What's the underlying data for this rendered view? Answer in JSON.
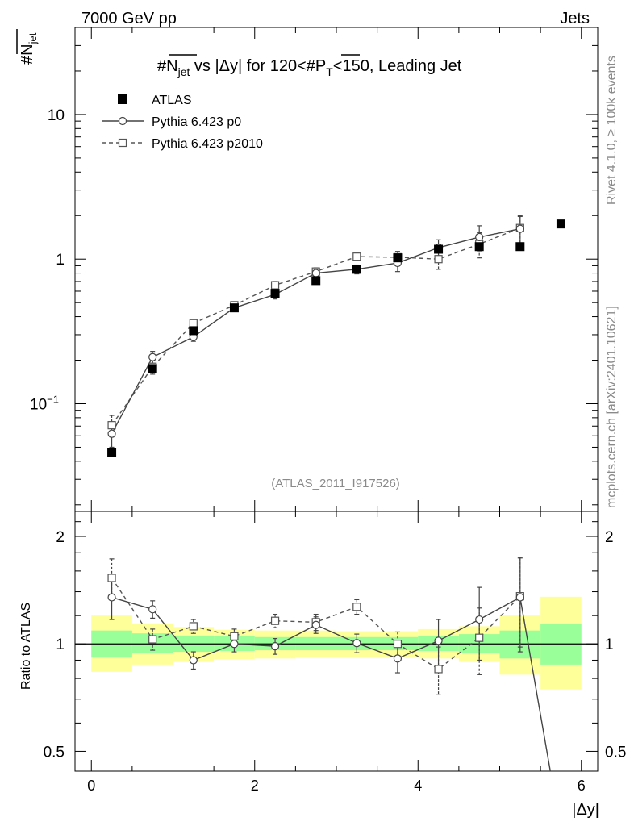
{
  "header": {
    "left": "7000 GeV pp",
    "right": "Jets"
  },
  "side": {
    "rivet": "Rivet 4.1.0, ≥ 100k events",
    "mcplots": "mcplots.cern.ch [arXiv:2401.10621]"
  },
  "chart_data": [
    {
      "type": "scatter",
      "title": "#N_jet vs |Δy| for 120<#P_T<150, Leading Jet",
      "ylabel": "#N_jet",
      "yscale": "log",
      "ylim": [
        0.018,
        40
      ],
      "xlim": [
        -0.2,
        6.2
      ],
      "yticks": [
        {
          "value": 0.1,
          "label": "10",
          "sup": "−1"
        },
        {
          "value": 1,
          "label": "1"
        },
        {
          "value": 10,
          "label": "10"
        }
      ],
      "watermark": "(ATLAS_2011_I917526)",
      "legend": [
        {
          "name": "ATLAS",
          "marker": "filled-square"
        },
        {
          "name": "Pythia 6.423 p0",
          "marker": "open-circle",
          "line": "solid"
        },
        {
          "name": "Pythia 6.423 p2010",
          "marker": "open-square",
          "line": "dashed"
        }
      ],
      "series": [
        {
          "name": "ATLAS",
          "x": [
            0.25,
            0.75,
            1.25,
            1.75,
            2.25,
            2.75,
            3.25,
            3.75,
            4.25,
            4.75,
            5.25,
            5.75
          ],
          "y": [
            0.046,
            0.175,
            0.32,
            0.46,
            0.58,
            0.71,
            0.85,
            1.02,
            1.17,
            1.22,
            1.22,
            1.75
          ]
        },
        {
          "name": "Pythia 6.423 p0",
          "x": [
            0.25,
            0.75,
            1.25,
            1.75,
            2.25,
            2.75,
            3.25,
            3.75,
            4.25,
            4.75,
            5.25
          ],
          "y": [
            0.062,
            0.21,
            0.29,
            0.46,
            0.57,
            0.8,
            0.85,
            0.94,
            1.2,
            1.42,
            1.62
          ],
          "err": [
            0.012,
            0.02,
            0.02,
            0.02,
            0.04,
            0.05,
            0.06,
            0.12,
            0.16,
            0.28,
            0.35
          ]
        },
        {
          "name": "Pythia 6.423 p2010",
          "x": [
            0.25,
            0.75,
            1.25,
            1.75,
            2.25,
            2.75,
            3.25,
            3.75,
            4.25,
            4.75,
            5.25
          ],
          "y": [
            0.071,
            0.18,
            0.36,
            0.48,
            0.66,
            0.82,
            1.04,
            1.03,
            1.0,
            1.27,
            1.64
          ],
          "err": [
            0.012,
            0.02,
            0.02,
            0.02,
            0.04,
            0.05,
            0.06,
            0.1,
            0.15,
            0.25,
            0.35
          ]
        }
      ]
    },
    {
      "type": "line",
      "ylabel": "Ratio to ATLAS",
      "xlabel": "|Δy|",
      "yscale": "log",
      "ylim": [
        0.44,
        2.35
      ],
      "xlim": [
        -0.2,
        6.2
      ],
      "xticks": [
        0,
        2,
        4,
        6
      ],
      "yticks": [
        0.5,
        1,
        2
      ],
      "bins": [
        0,
        0.5,
        1,
        1.5,
        2,
        2.5,
        3,
        3.5,
        4,
        4.5,
        5,
        5.5,
        6
      ],
      "band_yellow": [
        [
          0.835,
          1.2
        ],
        [
          0.875,
          1.14
        ],
        [
          0.89,
          1.115
        ],
        [
          0.905,
          1.095
        ],
        [
          0.91,
          1.09
        ],
        [
          0.915,
          1.09
        ],
        [
          0.915,
          1.085
        ],
        [
          0.915,
          1.085
        ],
        [
          0.91,
          1.1
        ],
        [
          0.89,
          1.12
        ],
        [
          0.82,
          1.2
        ],
        [
          0.745,
          1.355
        ]
      ],
      "band_green": [
        [
          0.915,
          1.09
        ],
        [
          0.94,
          1.07
        ],
        [
          0.95,
          1.055
        ],
        [
          0.955,
          1.05
        ],
        [
          0.96,
          1.045
        ],
        [
          0.96,
          1.045
        ],
        [
          0.96,
          1.045
        ],
        [
          0.96,
          1.045
        ],
        [
          0.955,
          1.05
        ],
        [
          0.94,
          1.065
        ],
        [
          0.91,
          1.09
        ],
        [
          0.875,
          1.14
        ]
      ],
      "series": [
        {
          "name": "Pythia 6.423 p0",
          "x": [
            0.25,
            0.75,
            1.25,
            1.75,
            2.25,
            2.75,
            3.25,
            3.75,
            4.25,
            4.75,
            5.25,
            5.62
          ],
          "y": [
            1.35,
            1.25,
            0.9,
            1.0,
            0.985,
            1.13,
            1.005,
            0.91,
            1.02,
            1.17,
            1.35,
            0.44
          ],
          "err": [
            0.18,
            0.07,
            0.05,
            0.05,
            0.05,
            0.06,
            0.06,
            0.08,
            0.15,
            0.27,
            0.4,
            0
          ]
        },
        {
          "name": "Pythia 6.423 p2010",
          "x": [
            0.25,
            0.75,
            1.25,
            1.75,
            2.25,
            2.75,
            3.25,
            3.75,
            4.25,
            4.75,
            5.25
          ],
          "y": [
            1.53,
            1.03,
            1.12,
            1.05,
            1.16,
            1.15,
            1.27,
            1.0,
            0.85,
            1.04,
            1.36
          ],
          "err": [
            0.2,
            0.07,
            0.05,
            0.05,
            0.05,
            0.06,
            0.06,
            0.08,
            0.13,
            0.22,
            0.38
          ]
        }
      ]
    }
  ]
}
